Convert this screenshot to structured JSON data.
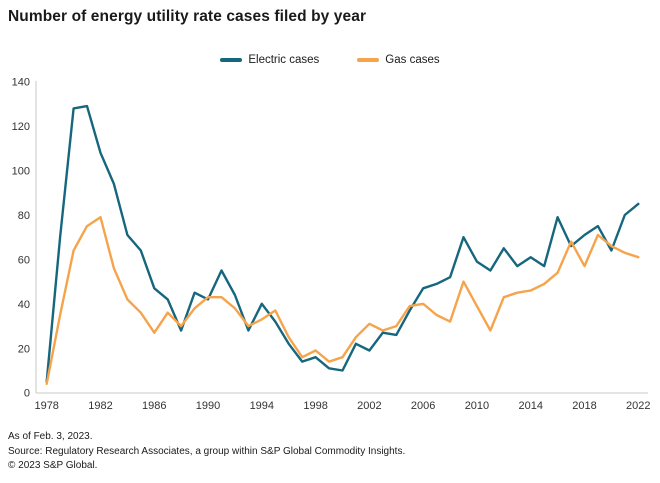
{
  "title": "Number of energy utility rate cases filed by year",
  "legend": {
    "items": [
      {
        "label": "Electric cases",
        "color": "#16677e"
      },
      {
        "label": "Gas cases",
        "color": "#f5a44c"
      }
    ]
  },
  "footer": {
    "as_of": "As of Feb. 3, 2023.",
    "source": "Source: Regulatory Research Associates, a group within S&P Global Commodity Insights.",
    "copyright": "© 2023 S&P Global."
  },
  "chart_data": {
    "type": "line",
    "title": "Number of energy utility rate cases filed by year",
    "xlabel": "",
    "ylabel": "",
    "grid": false,
    "legend_position": "top-center",
    "ylim": [
      0,
      140
    ],
    "y_ticks": [
      0,
      20,
      40,
      60,
      80,
      100,
      120,
      140
    ],
    "x_ticks": [
      1978,
      1982,
      1986,
      1990,
      1994,
      1998,
      2002,
      2006,
      2010,
      2014,
      2018,
      2022
    ],
    "x": [
      1978,
      1979,
      1980,
      1981,
      1982,
      1983,
      1984,
      1985,
      1986,
      1987,
      1988,
      1989,
      1990,
      1991,
      1992,
      1993,
      1994,
      1995,
      1996,
      1997,
      1998,
      1999,
      2000,
      2001,
      2002,
      2003,
      2004,
      2005,
      2006,
      2007,
      2008,
      2009,
      2010,
      2011,
      2012,
      2013,
      2014,
      2015,
      2016,
      2017,
      2018,
      2019,
      2020,
      2021,
      2022
    ],
    "series": [
      {
        "name": "Electric cases",
        "color": "#16677e",
        "values": [
          5,
          70,
          128,
          129,
          108,
          94,
          71,
          64,
          47,
          42,
          28,
          45,
          42,
          55,
          44,
          28,
          40,
          32,
          22,
          14,
          16,
          11,
          10,
          22,
          19,
          27,
          26,
          37,
          47,
          49,
          52,
          70,
          59,
          55,
          65,
          57,
          61,
          57,
          79,
          66,
          71,
          75,
          64,
          80,
          85
        ]
      },
      {
        "name": "Gas cases",
        "color": "#f5a44c",
        "values": [
          4,
          35,
          64,
          75,
          79,
          56,
          42,
          36,
          27,
          36,
          30,
          38,
          43,
          43,
          38,
          30,
          33,
          37,
          25,
          16,
          19,
          14,
          16,
          25,
          31,
          28,
          30,
          39,
          40,
          35,
          32,
          50,
          39,
          28,
          43,
          45,
          46,
          49,
          54,
          68,
          57,
          71,
          66,
          63,
          61
        ]
      }
    ]
  }
}
